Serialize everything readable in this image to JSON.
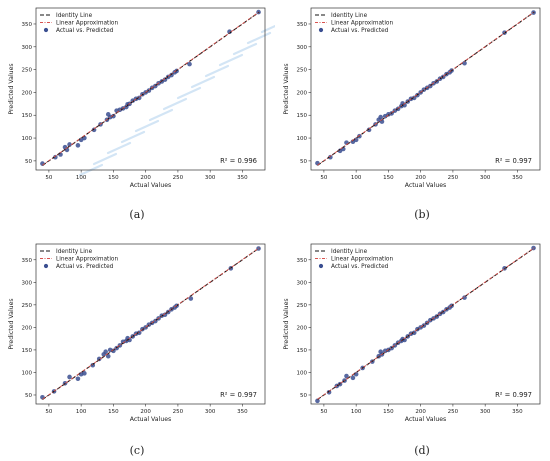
{
  "legend": {
    "identity": "Identity Line",
    "linear": "Linear Approximation",
    "scatter": "Actual vs. Predicted"
  },
  "colors": {
    "identity": "#111111",
    "linear": "#d9534f",
    "points": "#3b4f91",
    "watermark": "#cfe3f5"
  },
  "chart_data": [
    {
      "type": "scatter",
      "panel": "(a)",
      "xlabel": "Actual Values",
      "ylabel": "Predicted Values",
      "r2": "R² = 0.996",
      "xlim": [
        30,
        385
      ],
      "ylim": [
        30,
        385
      ],
      "xticks": [
        50,
        100,
        150,
        200,
        250,
        300,
        350
      ],
      "yticks": [
        50,
        100,
        150,
        200,
        250,
        300,
        350
      ],
      "series": [
        {
          "x": [
            40,
            60,
            68,
            75,
            78,
            82,
            95,
            100,
            105,
            120,
            130,
            140,
            142,
            145,
            150,
            155,
            160,
            165,
            170,
            172,
            175,
            180,
            185,
            190,
            195,
            200,
            205,
            210,
            215,
            220,
            225,
            230,
            235,
            240,
            245,
            248,
            268,
            330,
            375
          ],
          "y": [
            44,
            58,
            64,
            80,
            74,
            86,
            84,
            96,
            100,
            118,
            130,
            140,
            152,
            146,
            148,
            160,
            162,
            165,
            168,
            174,
            175,
            182,
            186,
            188,
            196,
            200,
            204,
            210,
            214,
            220,
            224,
            228,
            234,
            238,
            244,
            247,
            262,
            333,
            376
          ]
        }
      ]
    },
    {
      "type": "scatter",
      "panel": "(b)",
      "xlabel": "Actual Values",
      "ylabel": "Predicted Values",
      "r2": "R² = 0.997",
      "xlim": [
        30,
        385
      ],
      "ylim": [
        30,
        385
      ],
      "xticks": [
        50,
        100,
        150,
        200,
        250,
        300,
        350
      ],
      "yticks": [
        50,
        100,
        150,
        200,
        250,
        300,
        350
      ],
      "series": [
        {
          "x": [
            40,
            60,
            75,
            80,
            85,
            95,
            100,
            105,
            120,
            130,
            135,
            138,
            140,
            145,
            150,
            155,
            160,
            165,
            170,
            172,
            175,
            180,
            185,
            190,
            195,
            200,
            205,
            210,
            215,
            220,
            225,
            230,
            235,
            240,
            245,
            248,
            268,
            330,
            375
          ],
          "y": [
            45,
            58,
            72,
            76,
            90,
            92,
            96,
            104,
            118,
            130,
            140,
            146,
            136,
            148,
            152,
            154,
            160,
            164,
            170,
            176,
            172,
            180,
            186,
            188,
            194,
            200,
            206,
            210,
            214,
            220,
            224,
            230,
            234,
            240,
            244,
            248,
            264,
            331,
            375
          ]
        }
      ]
    },
    {
      "type": "scatter",
      "panel": "(c)",
      "xlabel": "Actual Values",
      "ylabel": "Predicted Values",
      "r2": "R² = 0.997",
      "xlim": [
        30,
        385
      ],
      "ylim": [
        30,
        385
      ],
      "xticks": [
        50,
        100,
        150,
        200,
        250,
        300,
        350
      ],
      "yticks": [
        50,
        100,
        150,
        200,
        250,
        300,
        350
      ],
      "series": [
        {
          "x": [
            40,
            58,
            75,
            82,
            95,
            100,
            105,
            118,
            128,
            135,
            138,
            142,
            145,
            150,
            155,
            160,
            165,
            170,
            172,
            175,
            180,
            185,
            190,
            195,
            200,
            205,
            210,
            215,
            220,
            225,
            230,
            235,
            240,
            245,
            248,
            270,
            332,
            375
          ],
          "y": [
            45,
            58,
            76,
            90,
            86,
            96,
            98,
            116,
            130,
            140,
            146,
            136,
            150,
            148,
            154,
            160,
            168,
            170,
            176,
            172,
            180,
            186,
            188,
            196,
            200,
            206,
            210,
            214,
            220,
            226,
            228,
            234,
            240,
            244,
            248,
            264,
            331,
            375
          ]
        }
      ]
    },
    {
      "type": "scatter",
      "panel": "(d)",
      "xlabel": "Actual Values",
      "ylabel": "Predicted Values",
      "r2": "R² = 0.997",
      "xlim": [
        30,
        385
      ],
      "ylim": [
        30,
        385
      ],
      "xticks": [
        50,
        100,
        150,
        200,
        250,
        300,
        350
      ],
      "yticks": [
        50,
        100,
        150,
        200,
        250,
        300,
        350
      ],
      "series": [
        {
          "x": [
            40,
            58,
            70,
            75,
            82,
            85,
            95,
            100,
            110,
            125,
            135,
            138,
            140,
            145,
            150,
            155,
            160,
            165,
            170,
            172,
            175,
            180,
            185,
            190,
            195,
            200,
            205,
            210,
            215,
            220,
            225,
            230,
            235,
            240,
            245,
            248,
            268,
            330,
            375
          ],
          "y": [
            37,
            56,
            70,
            74,
            82,
            92,
            88,
            96,
            110,
            124,
            136,
            146,
            140,
            148,
            150,
            154,
            160,
            166,
            170,
            174,
            172,
            180,
            186,
            188,
            196,
            200,
            204,
            210,
            216,
            220,
            224,
            230,
            234,
            240,
            244,
            248,
            266,
            331,
            376
          ]
        }
      ]
    }
  ]
}
